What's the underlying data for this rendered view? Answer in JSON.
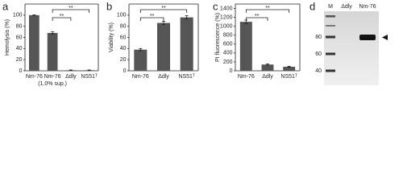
{
  "chart_data": [
    {
      "type": "bar",
      "panel": "a",
      "y_label": "Hemolysis (%)",
      "categories": [
        "Nm-76",
        "Nm-76\n(1.0% sup.)",
        "Δdly",
        "NS51ᵀ"
      ],
      "values": [
        100,
        68,
        1,
        1
      ],
      "errors": [
        0.5,
        2,
        0.5,
        0.5
      ],
      "color": "#555555",
      "ylim": [
        0,
        120
      ],
      "yticks": [
        0,
        20,
        40,
        60,
        80,
        100
      ],
      "annotations": [
        "**",
        "**"
      ]
    },
    {
      "type": "bar",
      "panel": "b",
      "y_label": "Viability (%)",
      "categories": [
        "Nm-76",
        "Δdly",
        "NS51ᵀ"
      ],
      "values": [
        38,
        86,
        96
      ],
      "errors": [
        2,
        3,
        3
      ],
      "color": "#555555",
      "ylim": [
        0,
        120
      ],
      "yticks": [
        0,
        20,
        40,
        60,
        80,
        100
      ],
      "annotations": [
        "**",
        "**"
      ]
    },
    {
      "type": "bar",
      "panel": "c",
      "y_label": "PI fluorescence (%)",
      "categories": [
        "Nm-76",
        "Δdly",
        "NS51ᵀ"
      ],
      "values": [
        1100,
        140,
        90
      ],
      "errors": [
        40,
        15,
        10
      ],
      "color": "#555555",
      "ylim": [
        0,
        1500
      ],
      "yticks": [
        0,
        200,
        400,
        600,
        800,
        1000,
        1200,
        1400
      ],
      "annotations": [
        "**",
        "**"
      ]
    }
  ],
  "gel": {
    "panel": "d",
    "lanes": [
      "M",
      "Δdly",
      "Nm-76"
    ],
    "markers": [
      "80",
      "60",
      "40"
    ]
  }
}
